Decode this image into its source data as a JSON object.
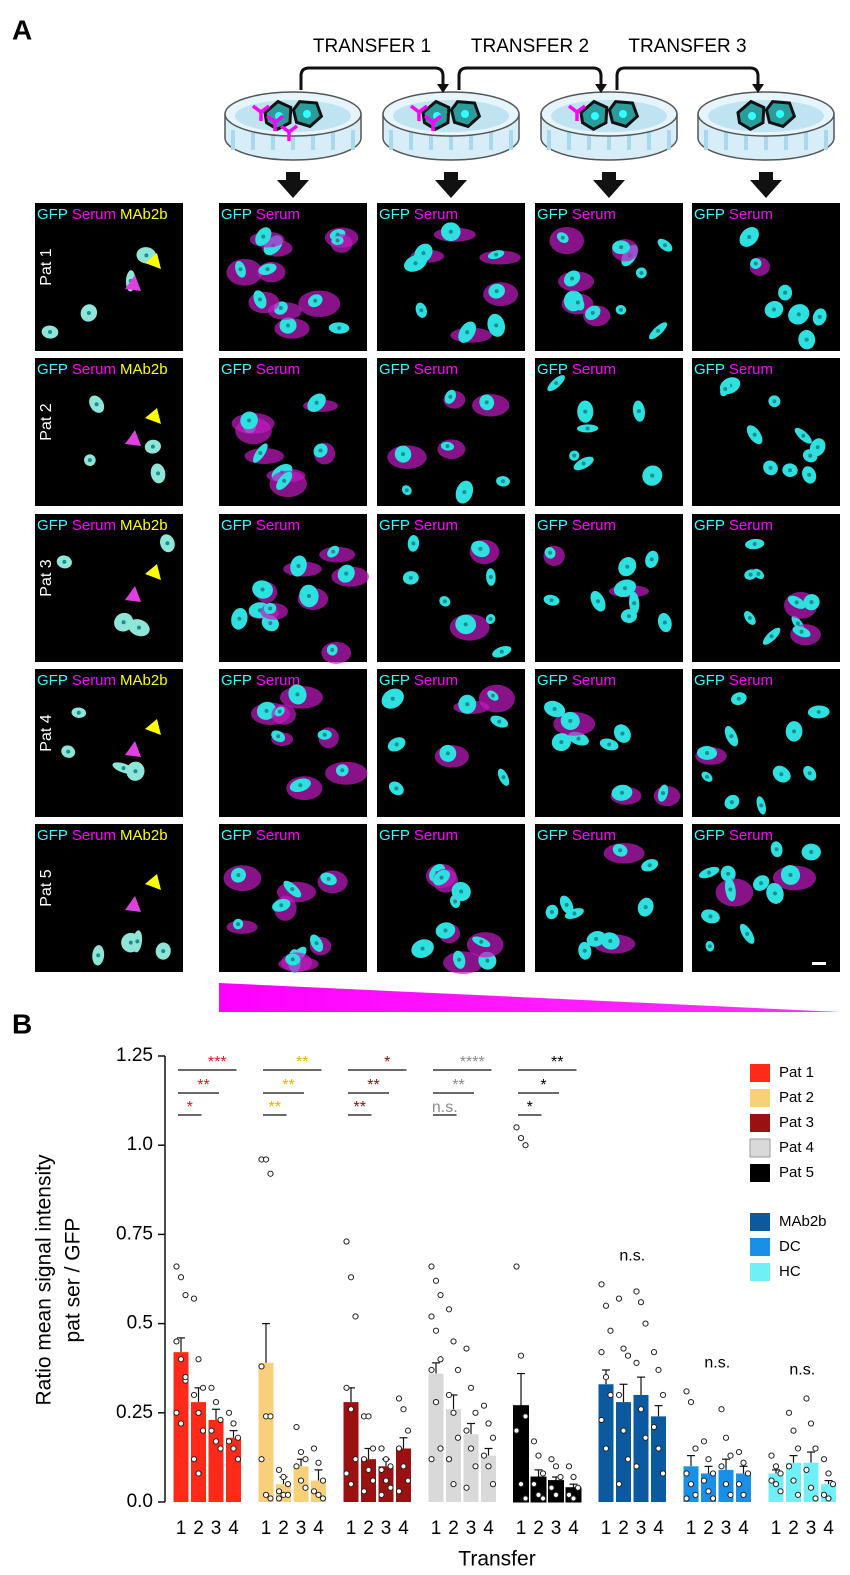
{
  "panel_a": {
    "label": "A",
    "transfers": [
      "TRANSFER 1",
      "TRANSFER 2",
      "TRANSFER 3"
    ],
    "first_column_label": [
      "GFP",
      "Serum",
      "MAb2b"
    ],
    "column_label": [
      "GFP",
      "Serum"
    ],
    "rows": [
      "Pat 1",
      "Pat 2",
      "Pat 3",
      "Pat 4",
      "Pat 5"
    ]
  },
  "panel_b": {
    "label": "B"
  },
  "chart_data": {
    "type": "bar",
    "y_label": [
      "Ratio mean signal intensity",
      "pat ser / GFP"
    ],
    "x_label": "Transfer",
    "categories": [
      "1",
      "2",
      "3",
      "4"
    ],
    "ylim": [
      0,
      1.25
    ],
    "yticks": [
      {
        "value": 0,
        "label": "0.0"
      },
      0.25,
      0.5,
      0.75,
      {
        "value": 1,
        "label": "1.0"
      },
      1.25
    ],
    "legend": "upper right",
    "series": [
      {
        "name": "Pat 1",
        "color": "#ff2a1a",
        "annotation_color": "#e8141c",
        "values": [
          0.42,
          0.28,
          0.23,
          0.18
        ],
        "errors": [
          0.04,
          0.04,
          0.03,
          0.02
        ],
        "points": [
          [
            0.66,
            0.63,
            0.58,
            0.45,
            0.4,
            0.34,
            0.25,
            0.22,
            0.35
          ],
          [
            0.57,
            0.4,
            0.32,
            0.3,
            0.25,
            0.2,
            0.12,
            0.08
          ],
          [
            0.32,
            0.28,
            0.23,
            0.2,
            0.17,
            0.15
          ],
          [
            0.25,
            0.22,
            0.18,
            0.17,
            0.15,
            0.12
          ]
        ],
        "significance": [
          "*",
          "**",
          "***"
        ]
      },
      {
        "name": "Pat 2",
        "color": "#f8d07a",
        "annotation_color": "#f0b000",
        "values": [
          0.39,
          0.05,
          0.1,
          0.06
        ],
        "errors": [
          0.11,
          0.02,
          0.02,
          0.03
        ],
        "points": [
          [
            0.96,
            0.96,
            0.92,
            0.38,
            0.24,
            0.24,
            0.12,
            0.02,
            0.01
          ],
          [
            0.09,
            0.07,
            0.05,
            0.03,
            0.02,
            0.02,
            0.01
          ],
          [
            0.21,
            0.14,
            0.12,
            0.1,
            0.06,
            0.04
          ],
          [
            0.15,
            0.11,
            0.06,
            0.03,
            0.02,
            0.01
          ]
        ],
        "significance": [
          "**",
          "**",
          "**"
        ]
      },
      {
        "name": "Pat 3",
        "color": "#9b1010",
        "annotation_color": "#8a0e0e",
        "values": [
          0.28,
          0.12,
          0.1,
          0.15
        ],
        "errors": [
          0.04,
          0.03,
          0.02,
          0.03
        ],
        "points": [
          [
            0.73,
            0.63,
            0.52,
            0.32,
            0.26,
            0.12,
            0.08,
            0.05
          ],
          [
            0.24,
            0.24,
            0.15,
            0.12,
            0.09,
            0.06,
            0.03
          ],
          [
            0.15,
            0.12,
            0.1,
            0.09,
            0.06,
            0.04,
            0.02
          ],
          [
            0.29,
            0.26,
            0.2,
            0.15,
            0.1,
            0.06,
            0.03
          ]
        ],
        "significance": [
          "**",
          "**",
          "*"
        ]
      },
      {
        "name": "Pat 4",
        "color": "#d9d9d9",
        "annotation_color": "#8c8c8c",
        "values": [
          0.36,
          0.26,
          0.19,
          0.13
        ],
        "errors": [
          0.03,
          0.04,
          0.03,
          0.02
        ],
        "points": [
          [
            0.66,
            0.62,
            0.58,
            0.52,
            0.48,
            0.4,
            0.37,
            0.28,
            0.15,
            0.12
          ],
          [
            0.54,
            0.45,
            0.37,
            0.3,
            0.25,
            0.18,
            0.12,
            0.05
          ],
          [
            0.43,
            0.32,
            0.25,
            0.2,
            0.15,
            0.1,
            0.04
          ],
          [
            0.27,
            0.22,
            0.18,
            0.13,
            0.1,
            0.05
          ]
        ],
        "significance": [
          "n.s.",
          "**",
          "****"
        ]
      },
      {
        "name": "Pat 5",
        "color": "#000000",
        "annotation_color": "#000000",
        "values": [
          0.27,
          0.07,
          0.06,
          0.04
        ],
        "errors": [
          0.09,
          0.02,
          0.01,
          0.01
        ],
        "points": [
          [
            1.05,
            1.02,
            1.0,
            0.66,
            0.41,
            0.24,
            0.2,
            0.05,
            0.01
          ],
          [
            0.17,
            0.13,
            0.08,
            0.05,
            0.02,
            0.01
          ],
          [
            0.12,
            0.1,
            0.07,
            0.04,
            0.02
          ],
          [
            0.1,
            0.07,
            0.04,
            0.02,
            0.01
          ]
        ],
        "significance": [
          "*",
          "*",
          "**"
        ]
      },
      {
        "name": "MAb2b",
        "color": "#0b5aa0",
        "annotation_color": "#000000",
        "values": [
          0.33,
          0.28,
          0.3,
          0.24
        ],
        "errors": [
          0.04,
          0.05,
          0.05,
          0.03
        ],
        "points": [
          [
            0.61,
            0.55,
            0.48,
            0.42,
            0.35,
            0.3,
            0.23,
            0.15
          ],
          [
            0.57,
            0.43,
            0.41,
            0.3,
            0.2,
            0.12,
            0.05
          ],
          [
            0.59,
            0.56,
            0.5,
            0.39,
            0.26,
            0.18,
            0.1
          ],
          [
            0.42,
            0.37,
            0.3,
            0.21,
            0.15,
            0.08
          ]
        ],
        "significance": [
          "n.s."
        ]
      },
      {
        "name": "DC",
        "color": "#1a8fe8",
        "annotation_color": "#000000",
        "values": [
          0.1,
          0.08,
          0.09,
          0.08
        ],
        "errors": [
          0.03,
          0.02,
          0.03,
          0.02
        ],
        "points": [
          [
            0.31,
            0.28,
            0.15,
            0.08,
            0.05,
            0.02,
            0.01
          ],
          [
            0.17,
            0.12,
            0.08,
            0.06,
            0.03,
            0.01
          ],
          [
            0.26,
            0.18,
            0.13,
            0.1,
            0.05,
            0.02
          ],
          [
            0.14,
            0.11,
            0.08,
            0.05,
            0.02
          ]
        ],
        "significance": [
          "n.s."
        ]
      },
      {
        "name": "HC",
        "color": "#6ff0f8",
        "annotation_color": "#000000",
        "values": [
          0.08,
          0.11,
          0.11,
          0.05
        ],
        "errors": [
          0.01,
          0.02,
          0.03,
          0.01
        ],
        "points": [
          [
            0.13,
            0.1,
            0.08,
            0.06,
            0.05,
            0.03
          ],
          [
            0.25,
            0.2,
            0.15,
            0.1,
            0.06,
            0.02
          ],
          [
            0.29,
            0.22,
            0.15,
            0.09,
            0.04,
            0.01
          ],
          [
            0.12,
            0.08,
            0.05,
            0.02,
            0.01
          ]
        ],
        "significance": [
          "n.s."
        ]
      }
    ]
  }
}
